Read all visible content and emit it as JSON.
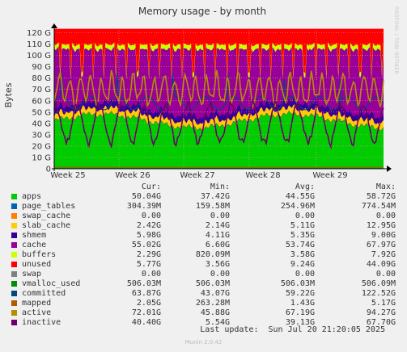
{
  "chart_data": {
    "type": "area",
    "title": "Memory usage - by month",
    "ylabel": "Bytes",
    "y_ticks": [
      "0",
      "10 G",
      "20 G",
      "30 G",
      "40 G",
      "50 G",
      "60 G",
      "70 G",
      "80 G",
      "90 G",
      "100 G",
      "110 G",
      "120 G"
    ],
    "ylim": [
      0,
      125
    ],
    "x_ticks": [
      "Week 25",
      "Week 26",
      "Week 27",
      "Week 28",
      "Week 29"
    ],
    "grid": true,
    "legend_placement": "bottom",
    "legend_columns": [
      "Cur:",
      "Min:",
      "Avg:",
      "Max:"
    ],
    "series": [
      {
        "name": "apps",
        "color": "#00cc00",
        "cur": "50.04G",
        "min": "37.42G",
        "avg": "44.55G",
        "max": "58.72G"
      },
      {
        "name": "page_tables",
        "color": "#0066b3",
        "cur": "304.39M",
        "min": "159.58M",
        "avg": "254.96M",
        "max": "774.54M"
      },
      {
        "name": "swap_cache",
        "color": "#ff8000",
        "cur": "0.00",
        "min": "0.00",
        "avg": "0.00",
        "max": "0.00"
      },
      {
        "name": "slab_cache",
        "color": "#ffcc00",
        "cur": "2.42G",
        "min": "2.14G",
        "avg": "5.11G",
        "max": "12.95G"
      },
      {
        "name": "shmem",
        "color": "#330099",
        "cur": "5.98G",
        "min": "4.11G",
        "avg": "5.35G",
        "max": "9.00G"
      },
      {
        "name": "cache",
        "color": "#990099",
        "cur": "55.02G",
        "min": "6.60G",
        "avg": "53.74G",
        "max": "67.97G"
      },
      {
        "name": "buffers",
        "color": "#ccff00",
        "cur": "2.29G",
        "min": "820.09M",
        "avg": "3.58G",
        "max": "7.92G"
      },
      {
        "name": "unused",
        "color": "#ff0000",
        "cur": "5.77G",
        "min": "3.56G",
        "avg": "9.24G",
        "max": "44.09G"
      },
      {
        "name": "swap",
        "color": "#808080",
        "cur": "0.00",
        "min": "0.00",
        "avg": "0.00",
        "max": "0.00"
      },
      {
        "name": "vmalloc_used",
        "color": "#008f00",
        "cur": "506.03M",
        "min": "506.03M",
        "avg": "506.03M",
        "max": "506.09M"
      },
      {
        "name": "committed",
        "color": "#00487d",
        "cur": "63.87G",
        "min": "43.07G",
        "avg": "59.22G",
        "max": "122.52G"
      },
      {
        "name": "mapped",
        "color": "#b35a00",
        "cur": "2.05G",
        "min": "263.28M",
        "avg": "1.43G",
        "max": "5.17G"
      },
      {
        "name": "active",
        "color": "#b38f00",
        "cur": "72.01G",
        "min": "45.88G",
        "avg": "67.19G",
        "max": "94.27G"
      },
      {
        "name": "inactive",
        "color": "#6b006b",
        "cur": "40.40G",
        "min": "5.54G",
        "avg": "39.13G",
        "max": "67.70G"
      }
    ]
  },
  "footer": {
    "last_update": "Last update:  Sun Jul 20 21:20:05 2025",
    "version": "Munin 2.0.42",
    "side_label": "RRDTOOL / TOBI OETIKER"
  }
}
